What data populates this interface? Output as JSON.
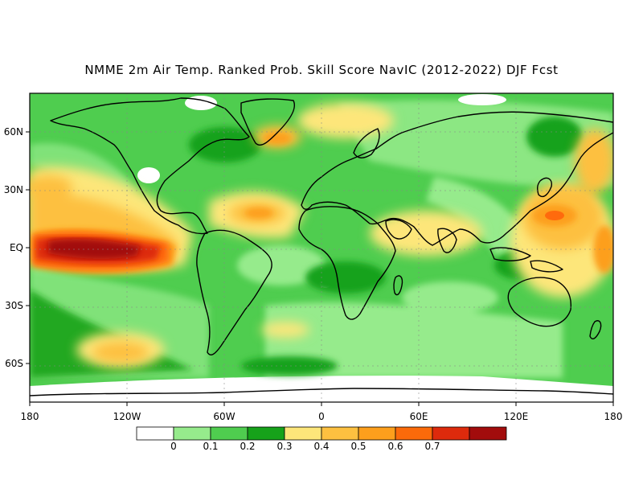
{
  "title": "NMME 2m Air Temp. Ranked Prob. Skill Score NavIC (2012-2022) DJF Fcst",
  "map": {
    "lon_range": [
      -180,
      180
    ],
    "lat_range": [
      -80,
      80
    ],
    "x_ticks": [
      {
        "lon": -180,
        "label": "180"
      },
      {
        "lon": -120,
        "label": "120W"
      },
      {
        "lon": -60,
        "label": "60W"
      },
      {
        "lon": 0,
        "label": "0"
      },
      {
        "lon": 60,
        "label": "60E"
      },
      {
        "lon": 120,
        "label": "120E"
      },
      {
        "lon": 180,
        "label": "180"
      }
    ],
    "y_ticks": [
      {
        "lat": 60,
        "label": "60N"
      },
      {
        "lat": 30,
        "label": "30N"
      },
      {
        "lat": 0,
        "label": "EQ"
      },
      {
        "lat": -30,
        "label": "30S"
      },
      {
        "lat": -60,
        "label": "60S"
      }
    ],
    "field_levels": [
      {
        "level": 0.5,
        "color": "#ff6a0d"
      },
      {
        "level": 0.6,
        "color": "#dd2a0c"
      },
      {
        "level": 0.7,
        "color": "#a20c0c"
      }
    ]
  },
  "colorbar": {
    "colors": [
      "#ffffff",
      "#96eb8c",
      "#4fcd4f",
      "#16a21a",
      "#fde67a",
      "#fdc040",
      "#fd9f1c",
      "#fb6a0a",
      "#dd2a0c",
      "#a20c0c"
    ],
    "labels": [
      "0",
      "0.1",
      "0.2",
      "0.3",
      "0.4",
      "0.5",
      "0.6",
      "0.7"
    ]
  }
}
